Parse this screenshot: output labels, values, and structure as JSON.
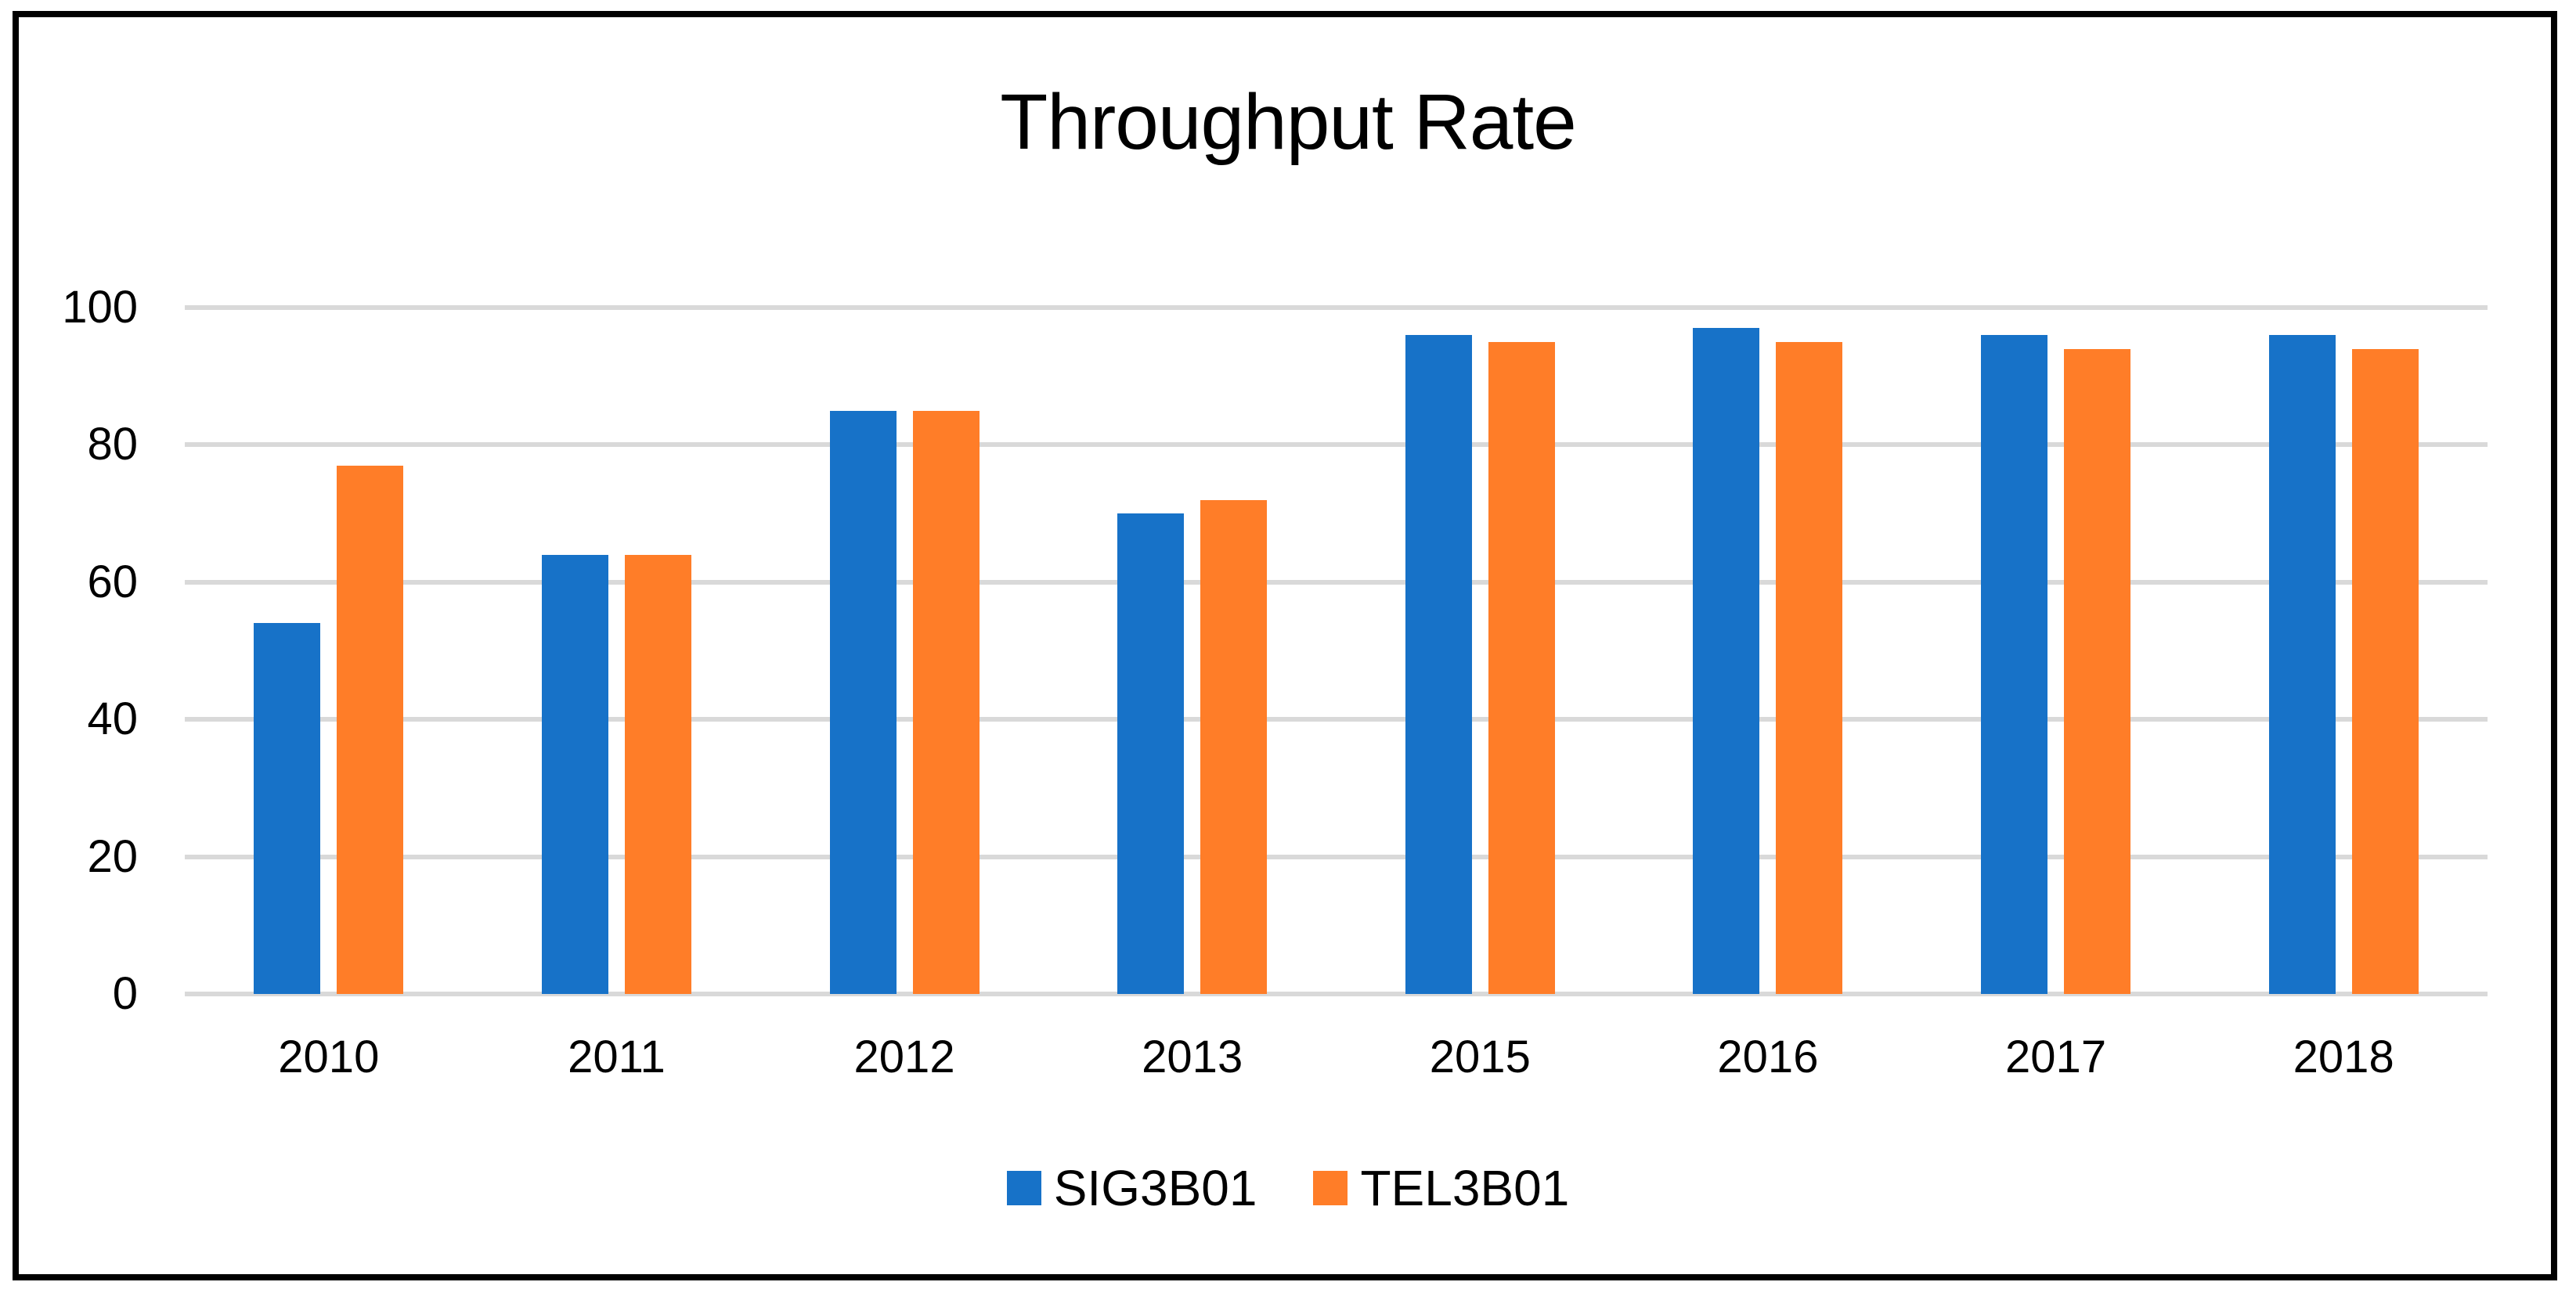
{
  "frame": {
    "background": "#FFFFFF",
    "border_color": "#000000"
  },
  "chart_data": {
    "type": "bar",
    "title": "Throughput Rate",
    "categories": [
      "2010",
      "2011",
      "2012",
      "2013",
      "2015",
      "2016",
      "2017",
      "2018"
    ],
    "series": [
      {
        "name": "SIG3B01",
        "color": "#1772C8",
        "values": [
          54,
          64,
          85,
          70,
          96,
          97,
          96,
          96
        ]
      },
      {
        "name": "TEL3B01",
        "color": "#FF7D28",
        "values": [
          77,
          64,
          85,
          72,
          95,
          95,
          94,
          94
        ]
      }
    ],
    "xlabel": "",
    "ylabel": "",
    "ylim": [
      0,
      100
    ],
    "yticks": [
      0,
      20,
      40,
      60,
      80,
      100
    ],
    "grid": true,
    "gridline_color": "#D9D9D9",
    "legend_position": "bottom"
  }
}
